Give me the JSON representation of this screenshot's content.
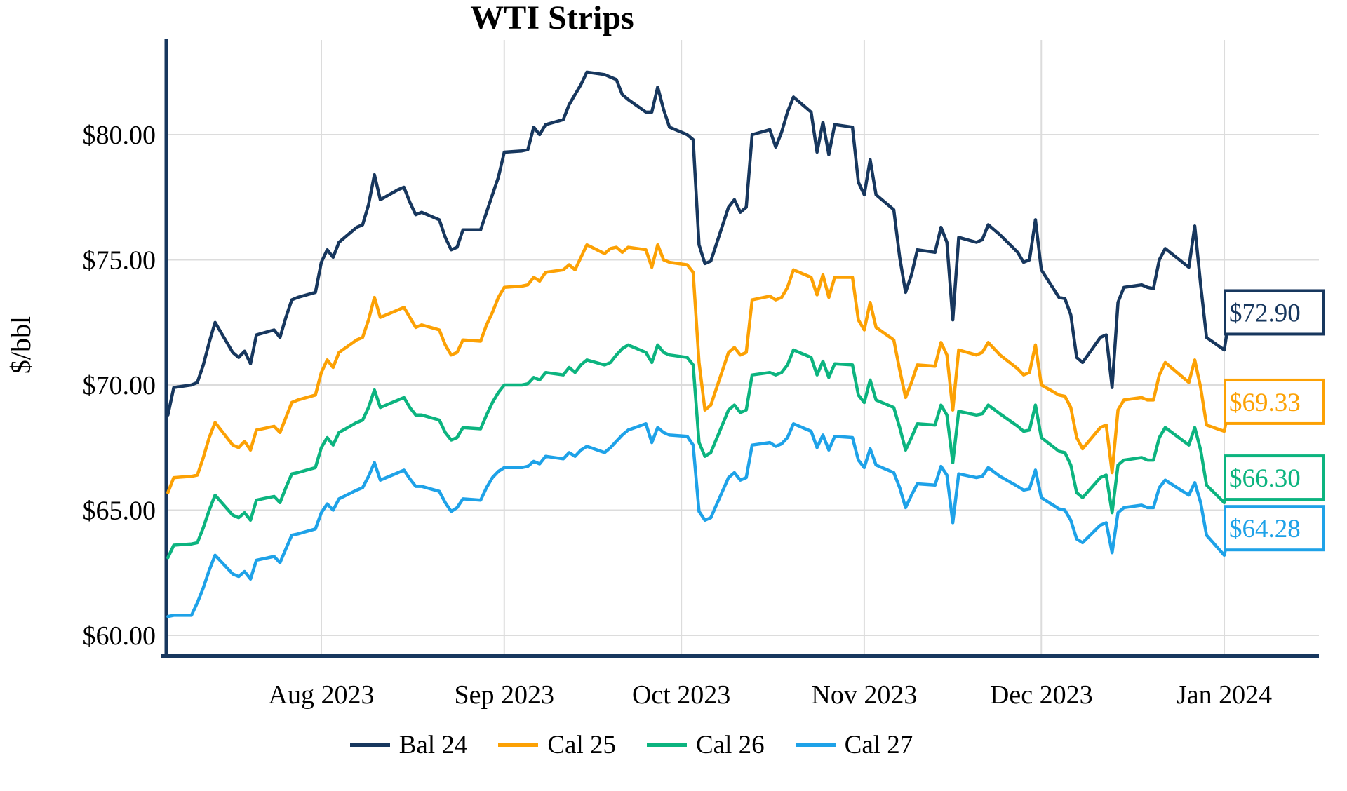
{
  "chart_data": {
    "type": "line",
    "title": "WTI Strips",
    "xlabel": "",
    "ylabel": "$/bbl",
    "grid": true,
    "legend_position": "bottom",
    "ylim": [
      59.2,
      83.8
    ],
    "xlim": [
      "2023-07-05",
      "2024-01-06"
    ],
    "y_ticks": [
      {
        "value": 80,
        "label": "$80.00"
      },
      {
        "value": 75,
        "label": "$75.00"
      },
      {
        "value": 70,
        "label": "$70.00"
      },
      {
        "value": 65,
        "label": "$65.00"
      },
      {
        "value": 60,
        "label": "$60.00"
      }
    ],
    "x_ticks": [
      {
        "date": "2023-08-01",
        "label": "Aug 2023"
      },
      {
        "date": "2023-09-01",
        "label": "Sep 2023"
      },
      {
        "date": "2023-10-01",
        "label": "Oct 2023"
      },
      {
        "date": "2023-11-01",
        "label": "Nov 2023"
      },
      {
        "date": "2023-12-01",
        "label": "Dec 2023"
      },
      {
        "date": "2024-01-01",
        "label": "Jan 2024"
      }
    ],
    "colors": {
      "axis": "#17375E",
      "gridline": "#DCDCDC",
      "bal24": "#17375E",
      "cal25": "#FCA104",
      "cal26": "#0CB47F",
      "cal27": "#1EA2E8"
    },
    "dates": [
      "2023-07-06",
      "2023-07-07",
      "2023-07-10",
      "2023-07-11",
      "2023-07-12",
      "2023-07-13",
      "2023-07-14",
      "2023-07-17",
      "2023-07-18",
      "2023-07-19",
      "2023-07-20",
      "2023-07-21",
      "2023-07-24",
      "2023-07-25",
      "2023-07-26",
      "2023-07-27",
      "2023-07-28",
      "2023-07-31",
      "2023-08-01",
      "2023-08-02",
      "2023-08-03",
      "2023-08-04",
      "2023-08-07",
      "2023-08-08",
      "2023-08-09",
      "2023-08-10",
      "2023-08-11",
      "2023-08-14",
      "2023-08-15",
      "2023-08-16",
      "2023-08-17",
      "2023-08-18",
      "2023-08-21",
      "2023-08-22",
      "2023-08-23",
      "2023-08-24",
      "2023-08-25",
      "2023-08-28",
      "2023-08-29",
      "2023-08-30",
      "2023-08-31",
      "2023-09-01",
      "2023-09-04",
      "2023-09-05",
      "2023-09-06",
      "2023-09-07",
      "2023-09-08",
      "2023-09-11",
      "2023-09-12",
      "2023-09-13",
      "2023-09-14",
      "2023-09-15",
      "2023-09-18",
      "2023-09-19",
      "2023-09-20",
      "2023-09-21",
      "2023-09-22",
      "2023-09-25",
      "2023-09-26",
      "2023-09-27",
      "2023-09-28",
      "2023-09-29",
      "2023-10-02",
      "2023-10-03",
      "2023-10-04",
      "2023-10-05",
      "2023-10-06",
      "2023-10-09",
      "2023-10-10",
      "2023-10-11",
      "2023-10-12",
      "2023-10-13",
      "2023-10-16",
      "2023-10-17",
      "2023-10-18",
      "2023-10-19",
      "2023-10-20",
      "2023-10-23",
      "2023-10-24",
      "2023-10-25",
      "2023-10-26",
      "2023-10-27",
      "2023-10-30",
      "2023-10-31",
      "2023-11-01",
      "2023-11-02",
      "2023-11-03",
      "2023-11-06",
      "2023-11-07",
      "2023-11-08",
      "2023-11-09",
      "2023-11-10",
      "2023-11-13",
      "2023-11-14",
      "2023-11-15",
      "2023-11-16",
      "2023-11-17",
      "2023-11-20",
      "2023-11-21",
      "2023-11-22",
      "2023-11-24",
      "2023-11-27",
      "2023-11-28",
      "2023-11-29",
      "2023-11-30",
      "2023-12-01",
      "2023-12-04",
      "2023-12-05",
      "2023-12-06",
      "2023-12-07",
      "2023-12-08",
      "2023-12-11",
      "2023-12-12",
      "2023-12-13",
      "2023-12-14",
      "2023-12-15",
      "2023-12-18",
      "2023-12-19",
      "2023-12-20",
      "2023-12-21",
      "2023-12-22",
      "2023-12-26",
      "2023-12-27",
      "2023-12-28",
      "2023-12-29",
      "2024-01-01",
      "2024-01-02"
    ],
    "series": [
      {
        "name": "Bal 24",
        "color_key": "bal24",
        "end_label": "$72.90",
        "values": [
          68.8,
          69.9,
          70.0,
          70.1,
          70.8,
          71.7,
          72.5,
          71.3,
          71.1,
          71.35,
          70.85,
          72.0,
          72.2,
          71.9,
          72.7,
          73.4,
          73.5,
          73.7,
          74.9,
          75.4,
          75.1,
          75.7,
          76.3,
          76.4,
          77.2,
          78.4,
          77.4,
          77.8,
          77.9,
          77.3,
          76.8,
          76.9,
          76.6,
          75.9,
          75.4,
          75.5,
          76.2,
          76.2,
          76.9,
          77.6,
          78.3,
          79.3,
          79.35,
          79.4,
          80.3,
          80.0,
          80.4,
          80.6,
          81.2,
          81.6,
          82.0,
          82.5,
          82.4,
          82.3,
          82.2,
          81.6,
          81.4,
          80.9,
          80.9,
          81.9,
          81.0,
          80.3,
          80.0,
          79.8,
          75.6,
          74.85,
          74.95,
          77.1,
          77.4,
          76.9,
          77.1,
          80.0,
          80.2,
          79.5,
          80.1,
          80.9,
          81.5,
          80.9,
          79.3,
          80.5,
          79.2,
          80.4,
          80.3,
          78.1,
          77.6,
          79.0,
          77.6,
          77.0,
          75.1,
          73.7,
          74.4,
          75.4,
          75.3,
          76.3,
          75.7,
          72.6,
          75.9,
          75.7,
          75.8,
          76.4,
          76.0,
          75.3,
          74.9,
          75.0,
          76.6,
          74.6,
          73.5,
          73.45,
          72.8,
          71.1,
          70.9,
          71.9,
          72.0,
          69.9,
          73.3,
          73.9,
          74.0,
          73.9,
          73.85,
          75.0,
          75.45,
          74.7,
          76.35,
          74.0,
          71.9,
          71.4,
          72.9
        ]
      },
      {
        "name": "Cal 25",
        "color_key": "cal25",
        "end_label": "$69.33",
        "values": [
          65.7,
          66.3,
          66.35,
          66.4,
          67.1,
          67.9,
          68.5,
          67.6,
          67.5,
          67.75,
          67.4,
          68.2,
          68.35,
          68.1,
          68.7,
          69.3,
          69.4,
          69.6,
          70.5,
          71.0,
          70.7,
          71.3,
          71.8,
          71.9,
          72.6,
          73.5,
          72.7,
          73.0,
          73.1,
          72.7,
          72.3,
          72.4,
          72.2,
          71.6,
          71.2,
          71.3,
          71.8,
          71.75,
          72.4,
          72.9,
          73.5,
          73.9,
          73.95,
          74.0,
          74.3,
          74.15,
          74.5,
          74.6,
          74.8,
          74.6,
          75.1,
          75.6,
          75.25,
          75.45,
          75.5,
          75.3,
          75.5,
          75.4,
          74.7,
          75.6,
          75.0,
          74.9,
          74.8,
          74.5,
          70.9,
          69.0,
          69.2,
          71.3,
          71.5,
          71.2,
          71.3,
          73.4,
          73.55,
          73.4,
          73.5,
          73.9,
          74.6,
          74.3,
          73.6,
          74.4,
          73.5,
          74.3,
          74.3,
          72.6,
          72.2,
          73.3,
          72.3,
          71.8,
          70.6,
          69.5,
          70.1,
          70.8,
          70.75,
          71.7,
          71.2,
          69.0,
          71.4,
          71.2,
          71.3,
          71.7,
          71.2,
          70.65,
          70.4,
          70.5,
          71.6,
          70.0,
          69.6,
          69.55,
          69.1,
          67.9,
          67.45,
          68.3,
          68.4,
          66.5,
          69.0,
          69.4,
          69.5,
          69.4,
          69.4,
          70.4,
          70.9,
          70.1,
          71.0,
          69.9,
          68.4,
          68.15,
          69.33
        ]
      },
      {
        "name": "Cal 26",
        "color_key": "cal26",
        "end_label": "$66.30",
        "values": [
          63.1,
          63.6,
          63.65,
          63.7,
          64.3,
          65.0,
          65.6,
          64.8,
          64.7,
          64.9,
          64.6,
          65.4,
          65.55,
          65.3,
          65.9,
          66.45,
          66.5,
          66.7,
          67.5,
          67.9,
          67.6,
          68.1,
          68.5,
          68.6,
          69.1,
          69.8,
          69.1,
          69.4,
          69.5,
          69.1,
          68.8,
          68.8,
          68.6,
          68.1,
          67.8,
          67.9,
          68.3,
          68.25,
          68.8,
          69.3,
          69.7,
          70.0,
          70.0,
          70.05,
          70.3,
          70.2,
          70.5,
          70.4,
          70.7,
          70.5,
          70.8,
          71.0,
          70.8,
          70.9,
          71.2,
          71.45,
          71.6,
          71.3,
          70.9,
          71.6,
          71.3,
          71.2,
          71.1,
          70.8,
          67.7,
          67.15,
          67.3,
          69.0,
          69.2,
          68.9,
          69.0,
          70.4,
          70.5,
          70.4,
          70.5,
          70.8,
          71.4,
          71.1,
          70.4,
          70.95,
          70.3,
          70.85,
          70.8,
          69.6,
          69.3,
          70.2,
          69.4,
          69.1,
          68.3,
          67.4,
          67.9,
          68.45,
          68.4,
          69.2,
          68.8,
          66.9,
          68.95,
          68.8,
          68.85,
          69.2,
          68.85,
          68.35,
          68.15,
          68.2,
          69.2,
          67.9,
          67.35,
          67.3,
          66.8,
          65.7,
          65.5,
          66.3,
          66.4,
          64.9,
          66.8,
          67.0,
          67.1,
          67.0,
          67.0,
          67.9,
          68.3,
          67.6,
          68.3,
          67.4,
          66.0,
          65.3,
          66.3
        ]
      },
      {
        "name": "Cal 27",
        "color_key": "cal27",
        "end_label": "$64.28",
        "values": [
          60.75,
          60.8,
          60.8,
          61.3,
          61.9,
          62.6,
          63.2,
          62.45,
          62.35,
          62.55,
          62.25,
          63.0,
          63.15,
          62.9,
          63.45,
          64.0,
          64.05,
          64.25,
          64.9,
          65.25,
          65.0,
          65.45,
          65.8,
          65.9,
          66.35,
          66.9,
          66.2,
          66.5,
          66.6,
          66.25,
          65.95,
          65.95,
          65.75,
          65.3,
          64.95,
          65.1,
          65.45,
          65.4,
          65.9,
          66.3,
          66.55,
          66.7,
          66.7,
          66.75,
          66.95,
          66.85,
          67.15,
          67.05,
          67.3,
          67.15,
          67.4,
          67.55,
          67.3,
          67.5,
          67.75,
          68.0,
          68.2,
          68.45,
          67.7,
          68.3,
          68.1,
          68.0,
          67.95,
          67.6,
          64.95,
          64.6,
          64.7,
          66.3,
          66.5,
          66.2,
          66.3,
          67.6,
          67.7,
          67.55,
          67.65,
          67.9,
          68.45,
          68.15,
          67.5,
          68.0,
          67.4,
          67.95,
          67.9,
          67.0,
          66.7,
          67.45,
          66.8,
          66.5,
          65.9,
          65.1,
          65.6,
          66.05,
          66.0,
          66.75,
          66.4,
          64.5,
          66.45,
          66.3,
          66.35,
          66.7,
          66.35,
          65.95,
          65.8,
          65.85,
          66.6,
          65.5,
          65.05,
          65.0,
          64.6,
          63.85,
          63.7,
          64.4,
          64.5,
          63.3,
          64.9,
          65.1,
          65.2,
          65.1,
          65.1,
          65.9,
          66.2,
          65.6,
          66.1,
          65.3,
          64.0,
          63.2,
          64.28
        ]
      }
    ]
  }
}
